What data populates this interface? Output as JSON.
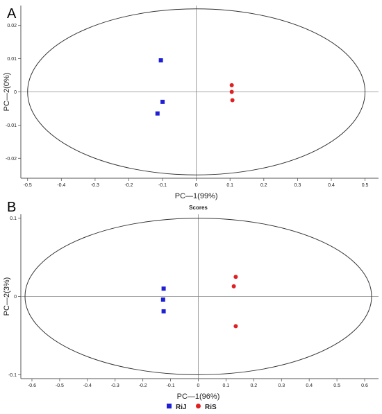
{
  "chart_data": [
    {
      "type": "scatter",
      "panel_label": "A",
      "title": "",
      "xlabel": "PC—1(99%)",
      "ylabel": "PC—2(0%)",
      "xlim": [
        -0.52,
        0.54
      ],
      "ylim": [
        -0.026,
        0.026
      ],
      "x_ticks": [
        -0.5,
        -0.4,
        -0.3,
        -0.2,
        -0.1,
        0,
        0.1,
        0.2,
        0.3,
        0.4,
        0.5
      ],
      "x_tick_labels": [
        "-0.5",
        "-0.4",
        "-0.3",
        "-0.2",
        "-0.1",
        "0",
        "0.1",
        "0.2",
        "0.3",
        "0.4",
        "0.5"
      ],
      "y_ticks": [
        -0.02,
        -0.01,
        0,
        0.01,
        0.02
      ],
      "y_tick_labels": [
        "-0.02",
        "-0.01",
        "0",
        "0.01",
        "0.02"
      ],
      "ellipse": {
        "rx": 0.5,
        "ry": 0.025
      },
      "series": [
        {
          "name": "RiJ",
          "marker": "square",
          "color": "#1f1fd6",
          "points": [
            [
              -0.105,
              0.0095
            ],
            [
              -0.1,
              -0.003
            ],
            [
              -0.115,
              -0.0065
            ]
          ]
        },
        {
          "name": "RiS",
          "marker": "circle",
          "color": "#e02020",
          "points": [
            [
              0.105,
              0.002
            ],
            [
              0.105,
              0.0
            ],
            [
              0.107,
              -0.0025
            ]
          ]
        }
      ]
    },
    {
      "type": "scatter",
      "panel_label": "B",
      "title": "Scores",
      "xlabel": "PC—1(96%)",
      "ylabel": "PC—2(3%)",
      "xlim": [
        -0.64,
        0.65
      ],
      "ylim": [
        -0.105,
        0.105
      ],
      "x_ticks": [
        -0.6,
        -0.5,
        -0.4,
        -0.3,
        -0.2,
        -0.1,
        0,
        0.1,
        0.2,
        0.3,
        0.4,
        0.5,
        0.6
      ],
      "x_tick_labels": [
        "-0.6",
        "-0.5",
        "-0.4",
        "-0.3",
        "-0.2",
        "-0.1",
        "0",
        "0.1",
        "0.2",
        "0.3",
        "0.4",
        "0.5",
        "0.6"
      ],
      "y_ticks": [
        -0.1,
        0,
        0.1
      ],
      "y_tick_labels": [
        "-0.1",
        "0",
        "0.1"
      ],
      "ellipse": {
        "rx": 0.625,
        "ry": 0.1
      },
      "series": [
        {
          "name": "RiJ",
          "marker": "square",
          "color": "#1f1fd6",
          "points": [
            [
              -0.125,
              0.01
            ],
            [
              -0.127,
              -0.004
            ],
            [
              -0.125,
              -0.019
            ]
          ]
        },
        {
          "name": "RiS",
          "marker": "circle",
          "color": "#e02020",
          "points": [
            [
              0.135,
              0.025
            ],
            [
              0.128,
              0.013
            ],
            [
              0.135,
              -0.038
            ]
          ]
        }
      ]
    }
  ],
  "legend": {
    "position": "bottom-center",
    "items": [
      {
        "label": "RiJ",
        "marker": "square",
        "color": "#1f1fd6"
      },
      {
        "label": "RiS",
        "marker": "circle",
        "color": "#e02020"
      }
    ]
  }
}
